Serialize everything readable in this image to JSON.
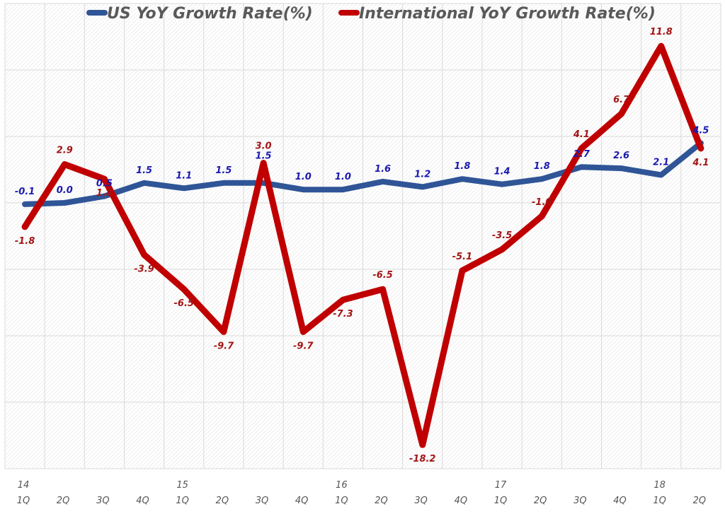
{
  "chart_data": {
    "type": "line",
    "title": "",
    "xlabel": "",
    "ylabel": "",
    "ylim": [
      -20,
      15
    ],
    "grid": true,
    "legend_position": "top",
    "categories": [
      "1Q",
      "2Q",
      "3Q",
      "4Q",
      "1Q",
      "2Q",
      "3Q",
      "4Q",
      "1Q",
      "2Q",
      "3Q",
      "4Q",
      "1Q",
      "2Q",
      "3Q",
      "4Q",
      "1Q",
      "2Q"
    ],
    "year_labels": [
      "14",
      "",
      "",
      "",
      "15",
      "",
      "",
      "",
      "16",
      "",
      "",
      "",
      "17",
      "",
      "",
      "",
      "18",
      ""
    ],
    "series": [
      {
        "name": "US YoY Growth Rate(%)",
        "color": "#2F5597",
        "label_color": "#1A1AB0",
        "values": [
          -0.1,
          0.0,
          0.5,
          1.5,
          1.1,
          1.5,
          1.5,
          1.0,
          1.0,
          1.6,
          1.2,
          1.8,
          1.4,
          1.8,
          2.7,
          2.6,
          2.1,
          4.5
        ],
        "labels": [
          "-0.1",
          "0.0",
          "0.5",
          "1.5",
          "1.1",
          "1.5",
          "1.5",
          "1.0",
          "1.0",
          "1.6",
          "1.2",
          "1.8",
          "1.4",
          "1.8",
          "2.7",
          "2.6",
          "2.1",
          "4.5"
        ]
      },
      {
        "name": "International YoY Growth Rate(%)",
        "color": "#C00000",
        "label_color": "#A31515",
        "values": [
          -1.8,
          2.9,
          1.8,
          -3.9,
          -6.5,
          -9.7,
          3.0,
          -9.7,
          -7.3,
          -6.5,
          -18.2,
          -5.1,
          -3.5,
          -1.0,
          4.1,
          6.7,
          11.8,
          4.1
        ],
        "labels": [
          "-1.8",
          "2.9",
          "1.8",
          "-3.9",
          "-6.5",
          "-9.7",
          "3.0",
          "-9.7",
          "-7.3",
          "-6.5",
          "-18.2",
          "-5.1",
          "-3.5",
          "-1.0",
          "4.1",
          "6.7",
          "11.8",
          "4.1"
        ]
      }
    ]
  }
}
